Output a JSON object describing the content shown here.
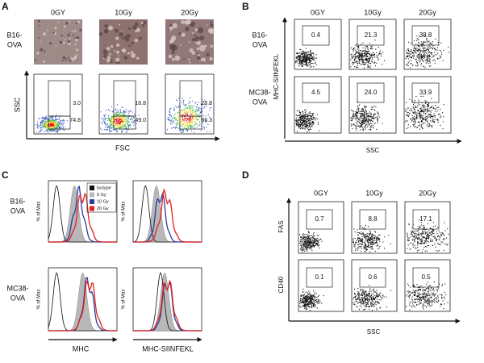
{
  "panel_a": {
    "letter": "A",
    "columns": [
      "0GY",
      "10Gy",
      "20Gy"
    ],
    "row_label": [
      "B16-",
      "OVA"
    ],
    "y_label": "SSC",
    "x_label": "FSC",
    "gates": [
      [
        "3.0",
        "74.8"
      ],
      [
        "16.8",
        "49.0"
      ],
      [
        "28.8",
        "36.3"
      ]
    ]
  },
  "panel_b": {
    "letter": "B",
    "columns": [
      "0GY",
      "10Gy",
      "20Gy"
    ],
    "y_label": "MHC-SIINFEKL",
    "x_label": "SSC",
    "rows": [
      {
        "label": [
          "B16-",
          "OVA"
        ],
        "gates": [
          "0.4",
          "21.3",
          "38.8"
        ]
      },
      {
        "label": [
          "MC38-",
          "OVA"
        ],
        "gates": [
          "4.5",
          "24.0",
          "33.9"
        ]
      }
    ]
  },
  "panel_c": {
    "letter": "C",
    "row_labels": [
      [
        "B16-",
        "OVA"
      ],
      [
        "MC38-",
        "OVA"
      ]
    ],
    "y_label": "% of Max",
    "x_labels": [
      "MHC",
      "MHC-SIINFEKL"
    ],
    "legend": [
      {
        "name": "Isotype",
        "color": "#111111"
      },
      {
        "name": "0 Gy",
        "color": "#b8b8b8"
      },
      {
        "name": "10 Gy",
        "color": "#2b3c9c"
      },
      {
        "name": "20 Gy",
        "color": "#e0201c"
      }
    ]
  },
  "panel_d": {
    "letter": "D",
    "columns": [
      "0GY",
      "10Gy",
      "20Gy"
    ],
    "x_label": "SSC",
    "rows": [
      {
        "label": "FAS",
        "gates": [
          "0.7",
          "8.8",
          "17.1"
        ]
      },
      {
        "label": "CD40",
        "gates": [
          "0.1",
          "0.6",
          "0.5"
        ]
      }
    ]
  }
}
